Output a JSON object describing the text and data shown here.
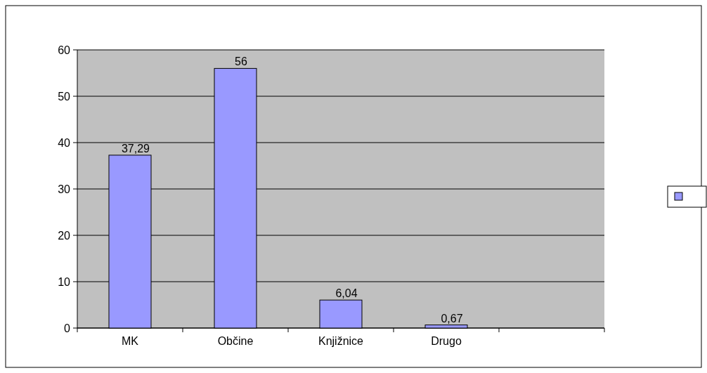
{
  "chart_data": {
    "type": "bar",
    "categories": [
      "MK",
      "Občine",
      "Knjižnice",
      "Drugo",
      null
    ],
    "series": [
      {
        "color": "#9999ff",
        "values": [
          37.29,
          56,
          6.04,
          0.67,
          null
        ],
        "value_labels": [
          "37,29",
          "56",
          "6,04",
          "0,67",
          null
        ]
      }
    ],
    "ylim": [
      0,
      60
    ],
    "yticks": [
      0,
      10,
      20,
      30,
      40,
      50,
      60
    ],
    "grid": "y"
  }
}
